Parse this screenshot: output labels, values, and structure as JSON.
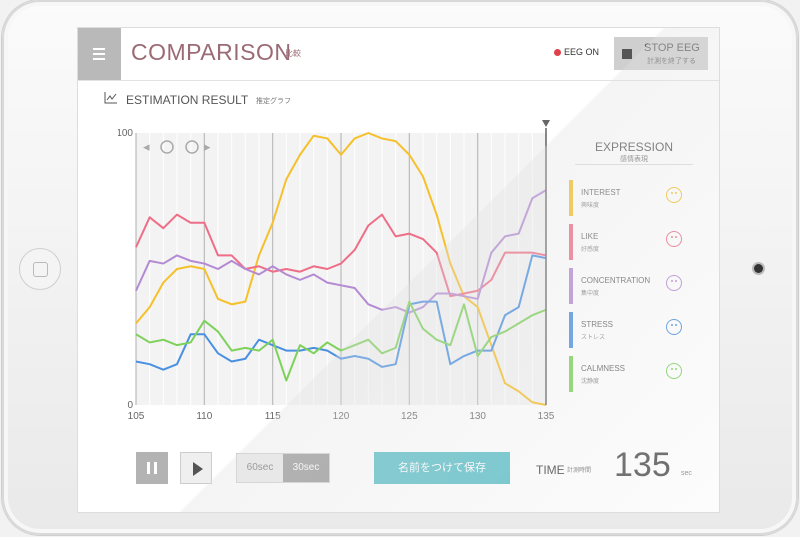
{
  "header": {
    "title": "COMPARISON",
    "title_sub": "比較",
    "eeg_status": "EEG ON",
    "stop_label": "STOP EEG",
    "stop_sub": "計測を終了する"
  },
  "section": {
    "title": "ESTIMATION RESULT",
    "subtitle": "推定グラフ"
  },
  "legend": {
    "title": "EXPRESSION",
    "subtitle": "感情表現",
    "items": [
      {
        "name": "INTEREST",
        "jp": "興味度",
        "color": "#f5c02a",
        "icon": "interest-face-icon"
      },
      {
        "name": "LIKE",
        "jp": "好感度",
        "color": "#ee6e87",
        "icon": "like-face-icon"
      },
      {
        "name": "CONCENTRATION",
        "jp": "集中度",
        "color": "#b48ad3",
        "icon": "concentration-face-icon"
      },
      {
        "name": "STRESS",
        "jp": "ストレス",
        "color": "#4a90e2",
        "icon": "stress-face-icon"
      },
      {
        "name": "CALMNESS",
        "jp": "沈静度",
        "color": "#7ed15a",
        "icon": "calmness-face-icon"
      }
    ]
  },
  "controls": {
    "seg_60": "60sec",
    "seg_30": "30sec",
    "selected_range": "30sec",
    "save_label": "名前をつけて保存",
    "time_label": "TIME",
    "time_sub": "計測時間",
    "time_value": "135",
    "time_unit": "sec"
  },
  "chart_data": {
    "type": "line",
    "x": [
      105,
      106,
      107,
      108,
      109,
      110,
      111,
      112,
      113,
      114,
      115,
      116,
      117,
      118,
      119,
      120,
      121,
      122,
      123,
      124,
      125,
      126,
      127,
      128,
      129,
      130,
      131,
      132,
      133,
      134,
      135
    ],
    "xticks": [
      105,
      110,
      115,
      120,
      125,
      130,
      135
    ],
    "xlim": [
      105,
      135
    ],
    "ylim": [
      0,
      100
    ],
    "yticks": [
      0,
      100
    ],
    "grid": true,
    "series": [
      {
        "name": "INTEREST",
        "color": "#f5c02a",
        "values": [
          30,
          36,
          45,
          50,
          51,
          50,
          39,
          37,
          38,
          55,
          67,
          83,
          92,
          99,
          98,
          92,
          98,
          100,
          98,
          97,
          92,
          84,
          70,
          52,
          40,
          36,
          22,
          8,
          5,
          1,
          0
        ]
      },
      {
        "name": "LIKE",
        "color": "#ee6e87",
        "values": [
          58,
          69,
          65,
          70,
          67,
          67,
          55,
          55,
          50,
          51,
          49,
          50,
          49,
          51,
          50,
          52,
          57,
          66,
          70,
          62,
          63,
          61,
          56,
          40,
          41,
          42,
          46,
          56,
          56,
          56,
          55
        ]
      },
      {
        "name": "CONCENTRATION",
        "color": "#b48ad3",
        "values": [
          42,
          53,
          52,
          55,
          53,
          52,
          50,
          53,
          50,
          48,
          51,
          48,
          46,
          48,
          45,
          44,
          43,
          37,
          35,
          36,
          34,
          36,
          41,
          41,
          40,
          39,
          56,
          62,
          63,
          76,
          79
        ]
      },
      {
        "name": "STRESS",
        "color": "#4a90e2",
        "values": [
          16,
          15,
          13,
          15,
          26,
          26,
          19,
          16,
          17,
          24,
          22,
          20,
          20,
          21,
          20,
          17,
          18,
          17,
          14,
          15,
          37,
          38,
          38,
          15,
          18,
          20,
          20,
          33,
          36,
          55,
          54
        ]
      },
      {
        "name": "CALMNESS",
        "color": "#7ed15a",
        "values": [
          26,
          23,
          24,
          22,
          23,
          31,
          27,
          20,
          21,
          20,
          24,
          9,
          22,
          19,
          23,
          20,
          22,
          24,
          19,
          21,
          38,
          28,
          24,
          22,
          37,
          18,
          25,
          27,
          30,
          33,
          35
        ]
      }
    ]
  }
}
